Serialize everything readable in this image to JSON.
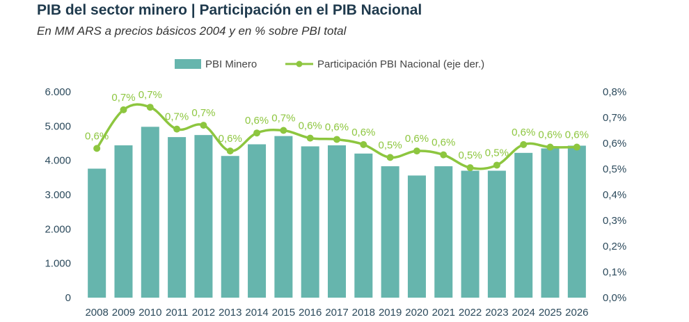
{
  "header": {
    "title": "PIB del sector minero | Participación en el PIB Nacional",
    "subtitle": "En MM ARS a precios básicos 2004 y en % sobre PBI total"
  },
  "colors": {
    "bar": "#66b5ad",
    "line": "#8dc63f",
    "axis_text": "#2c4a5c"
  },
  "chart_data": {
    "type": "bar",
    "categories": [
      "2008",
      "2009",
      "2010",
      "2011",
      "2012",
      "2013",
      "2014",
      "2015",
      "2016",
      "2017",
      "2018",
      "2019",
      "2020",
      "2021",
      "2022",
      "2023",
      "2024",
      "2025",
      "2026"
    ],
    "series": [
      {
        "name": "PBI Minero",
        "type": "bar",
        "axis": "left",
        "values": [
          3760,
          4440,
          4980,
          4680,
          4740,
          4130,
          4470,
          4710,
          4410,
          4440,
          4200,
          3830,
          3560,
          3830,
          3700,
          3700,
          4220,
          4350,
          4430
        ]
      },
      {
        "name": "Participación PBI Nacional (eje der.)",
        "type": "line",
        "axis": "right",
        "values": [
          0.58,
          0.73,
          0.74,
          0.655,
          0.67,
          0.57,
          0.64,
          0.65,
          0.62,
          0.615,
          0.595,
          0.545,
          0.57,
          0.555,
          0.505,
          0.515,
          0.595,
          0.585,
          0.585
        ],
        "labels": [
          "0,6%",
          "0,7%",
          "0,7%",
          "0,7%",
          "0,7%",
          "0,6%",
          "0,6%",
          "0,7%",
          "0,6%",
          "0,6%",
          "0,6%",
          "0,5%",
          "0,6%",
          "0,6%",
          "0,5%",
          "0,5%",
          "0,6%",
          "0,6%",
          "0,6%"
        ]
      }
    ],
    "y_left": {
      "range": [
        0,
        6000
      ],
      "ticks": [
        0,
        1000,
        2000,
        3000,
        4000,
        5000,
        6000
      ],
      "tick_labels": [
        "0",
        "1.000",
        "2.000",
        "3.000",
        "4.000",
        "5.000",
        "6.000"
      ]
    },
    "y_right": {
      "range": [
        0,
        0.8
      ],
      "ticks": [
        0,
        0.1,
        0.2,
        0.3,
        0.4,
        0.5,
        0.6,
        0.7,
        0.8
      ],
      "tick_labels": [
        "0,0%",
        "0,1%",
        "0,2%",
        "0,3%",
        "0,4%",
        "0,5%",
        "0,6%",
        "0,7%",
        "0,8%"
      ]
    },
    "grid": false,
    "legend": "top-center",
    "legend_entries": [
      "PBI Minero",
      "Participación PBI Nacional (eje der.)"
    ]
  }
}
